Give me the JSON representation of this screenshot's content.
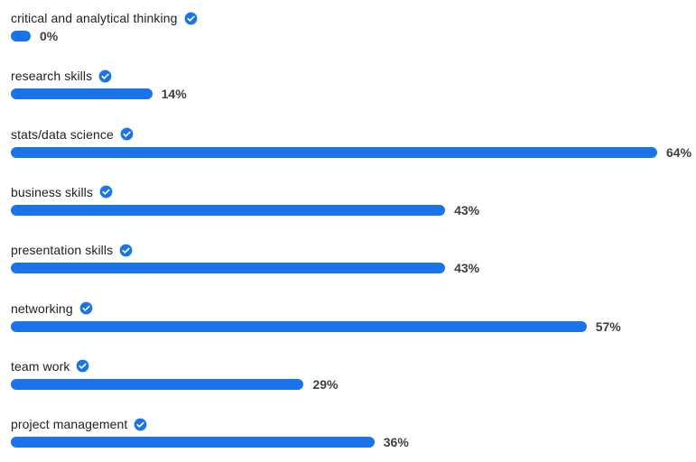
{
  "chart_data": {
    "type": "bar",
    "orientation": "horizontal",
    "categories": [
      "critical and analytical thinking",
      "research skills",
      "stats/data science",
      "business skills",
      "presentation skills",
      "networking",
      "team work",
      "project management"
    ],
    "values": [
      0,
      14,
      64,
      43,
      43,
      57,
      29,
      36
    ],
    "value_labels": [
      "0%",
      "14%",
      "64%",
      "43%",
      "43%",
      "57%",
      "29%",
      "36%"
    ],
    "unit": "%",
    "xlim": [
      0,
      64
    ],
    "bar_color": "#1a73e8",
    "check_icon_color": "#1a73e8",
    "label_icon": "check-circle-icon",
    "grid": false,
    "legend": "none"
  }
}
